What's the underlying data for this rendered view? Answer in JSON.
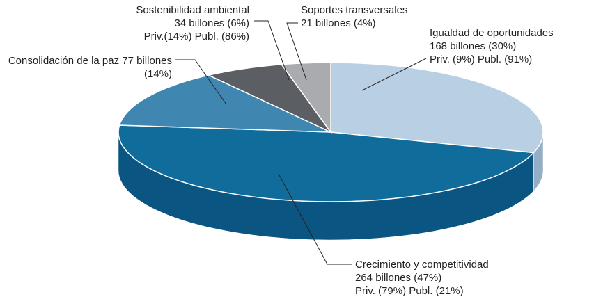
{
  "chart_data": {
    "type": "pie",
    "categories": [
      "Igualdad de oportunidades",
      "Crecimiento y competitividad",
      "Consolidación de la paz",
      "Sostenibilidad ambiental",
      "Soportes transversales"
    ],
    "values": [
      168,
      264,
      77,
      34,
      21
    ],
    "value_labels": [
      "168 billones (30%)",
      "264 billones (47%)",
      "77 billones (14%)",
      "34 billones (6%)",
      "21 billones (4%)"
    ],
    "details": [
      "Priv. (9%) Publ. (91%)",
      "Priv. (79%) Publ. (21%)",
      null,
      "Priv.(14%) Publ. (86%)",
      null
    ],
    "colors": [
      "#b9cfe4",
      "#0f6c9b",
      "#3f87b1",
      "#5b5e62",
      "#a9abae"
    ],
    "side_colors": [
      "#94aec6",
      "#0a5582",
      "#2f6e93",
      "#45484b",
      "#8a8c8f"
    ]
  }
}
